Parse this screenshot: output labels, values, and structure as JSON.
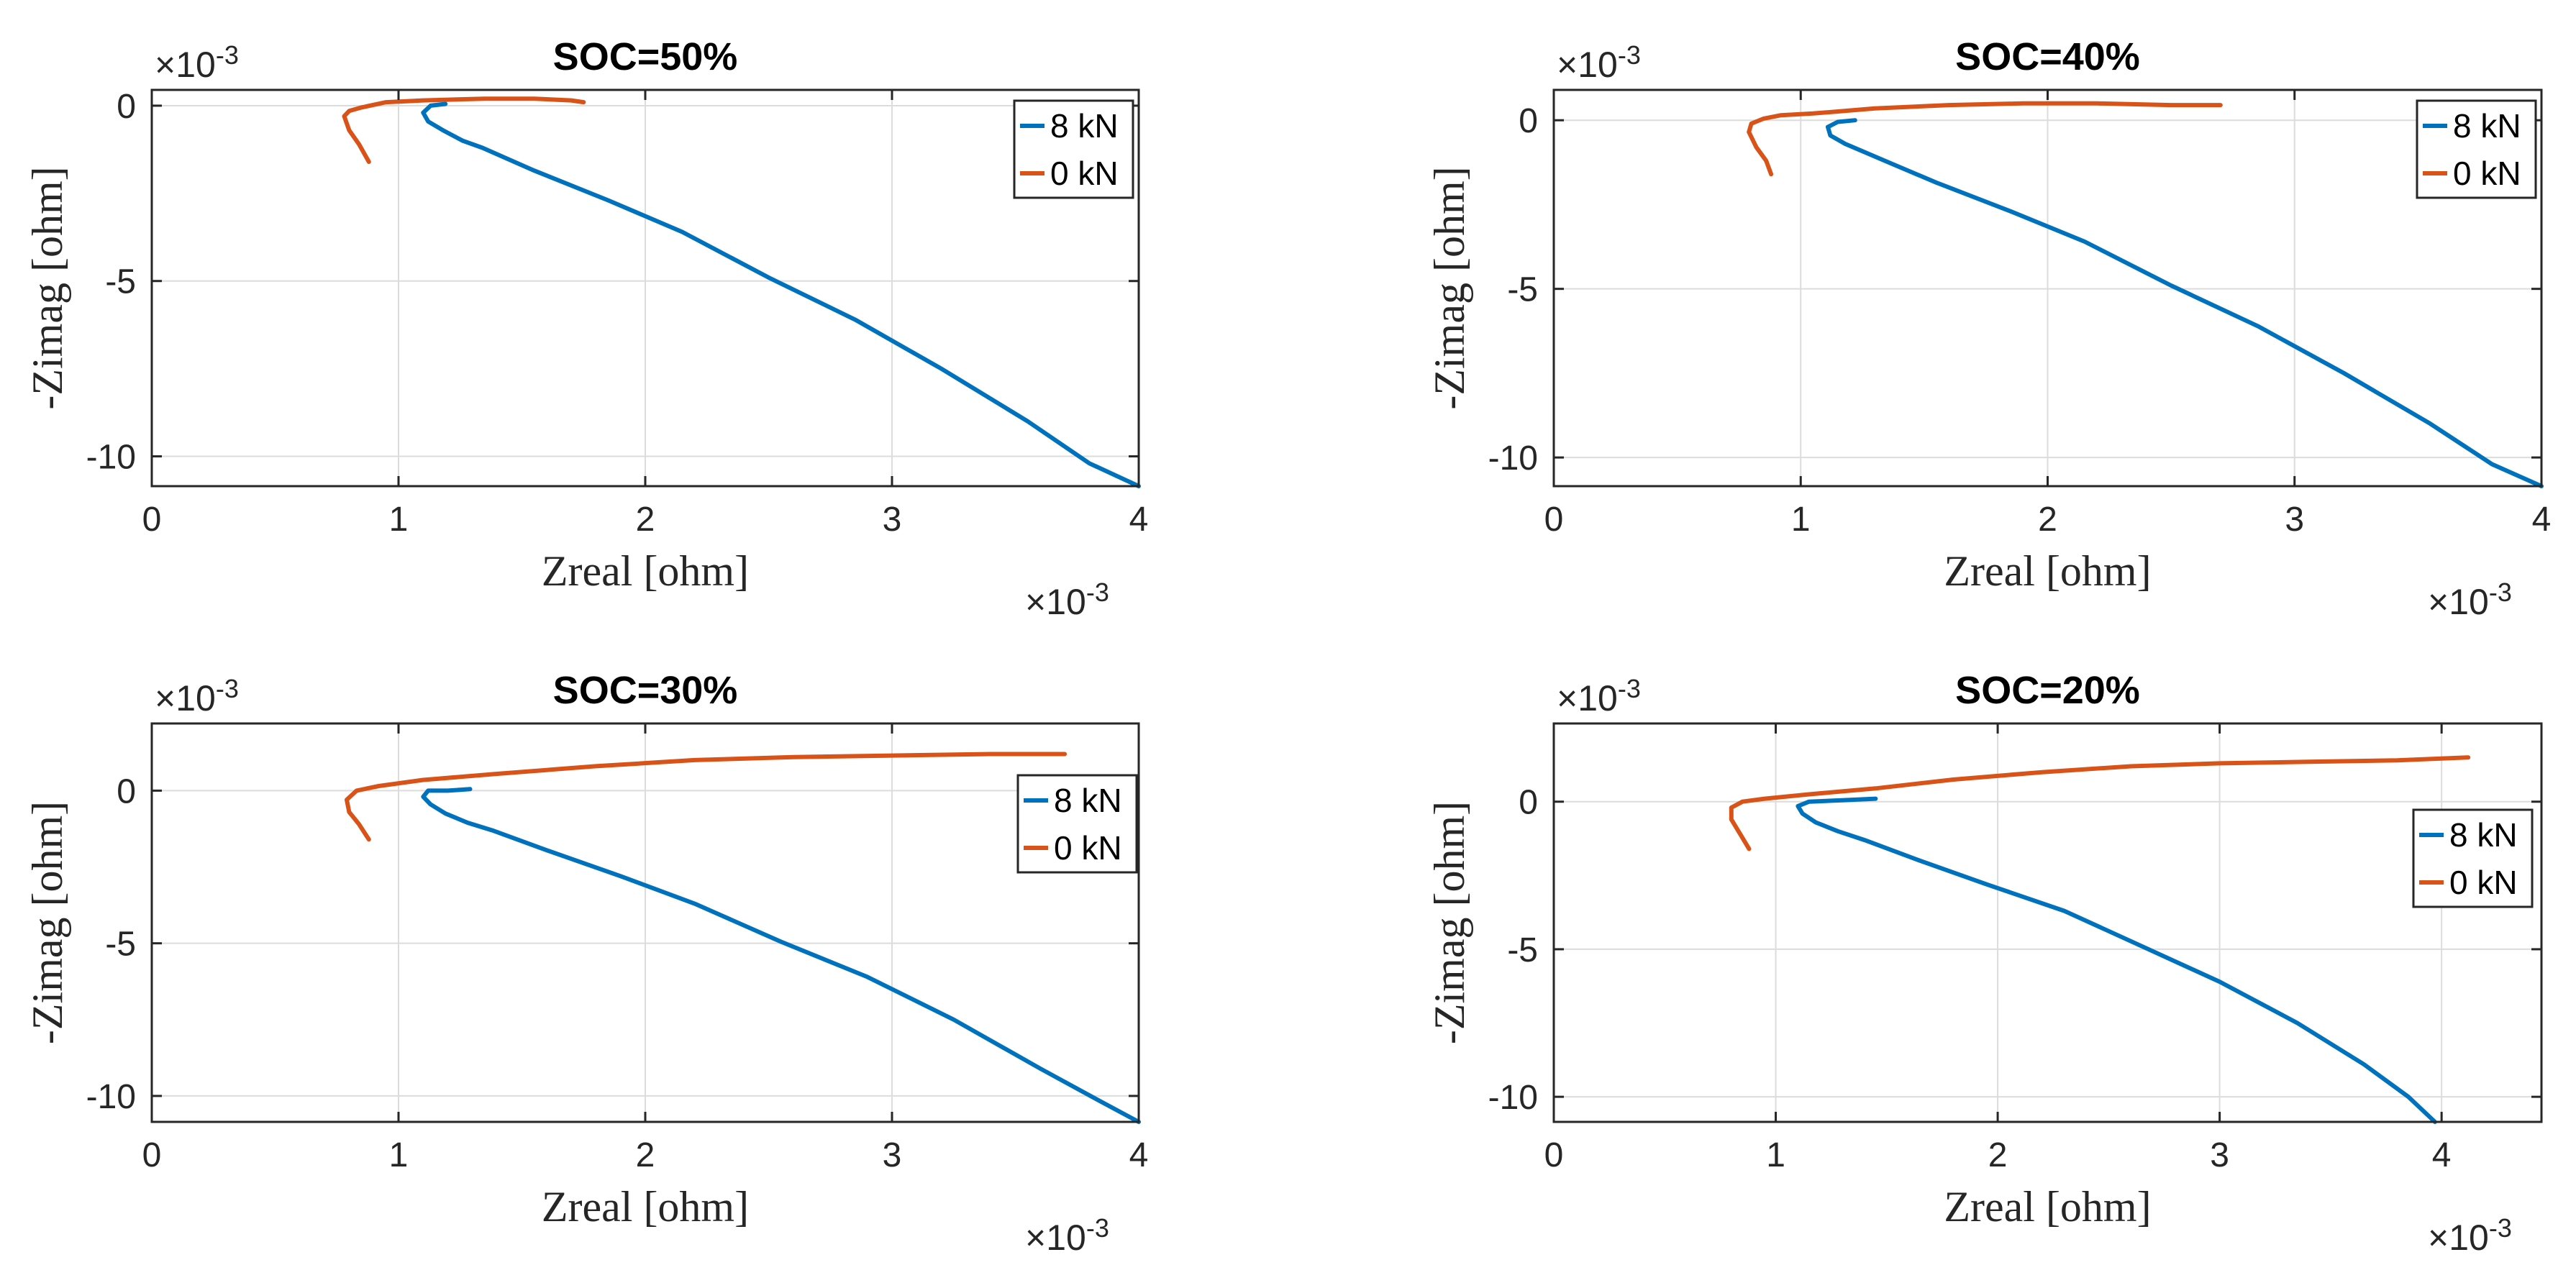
{
  "figure": {
    "exponent_base": "×10",
    "exponent_power": "-3"
  },
  "chart_data": [
    {
      "type": "line",
      "title": "SOC=50%",
      "xlabel": "Zreal [ohm]",
      "ylabel": "-Zimag [ohm]",
      "xlim": [
        0,
        4
      ],
      "ylim": [
        -10.85,
        0.45
      ],
      "xticks": [
        0,
        1,
        2,
        3,
        4
      ],
      "yticks": [
        0,
        -5,
        -10
      ],
      "legend_position": "top-right",
      "series": [
        {
          "name": "8 kN",
          "color": "#0072bd",
          "x": [
            1.19,
            1.13,
            1.1,
            1.12,
            1.18,
            1.26,
            1.34,
            1.55,
            1.85,
            2.15,
            2.5,
            2.85,
            3.2,
            3.55,
            3.8,
            4.0
          ],
          "y": [
            0.05,
            0.0,
            -0.2,
            -0.45,
            -0.7,
            -1.0,
            -1.2,
            -1.85,
            -2.7,
            -3.6,
            -4.9,
            -6.1,
            -7.5,
            -9.0,
            -10.2,
            -10.85
          ]
        },
        {
          "name": "0 kN",
          "color": "#d95319",
          "x": [
            1.75,
            1.7,
            1.55,
            1.35,
            1.1,
            0.95,
            0.85,
            0.8,
            0.78,
            0.8,
            0.84,
            0.88
          ],
          "y": [
            0.1,
            0.15,
            0.2,
            0.2,
            0.15,
            0.1,
            -0.05,
            -0.15,
            -0.3,
            -0.7,
            -1.1,
            -1.6
          ]
        }
      ]
    },
    {
      "type": "line",
      "title": "SOC=40%",
      "xlabel": "Zreal [ohm]",
      "ylabel": "-Zimag [ohm]",
      "xlim": [
        0,
        4
      ],
      "ylim": [
        -10.85,
        0.9
      ],
      "xticks": [
        0,
        1,
        2,
        3,
        4
      ],
      "yticks": [
        0,
        -5,
        -10
      ],
      "legend_position": "top-right",
      "series": [
        {
          "name": "8 kN",
          "color": "#0072bd",
          "x": [
            1.22,
            1.15,
            1.11,
            1.12,
            1.18,
            1.26,
            1.34,
            1.55,
            1.85,
            2.15,
            2.5,
            2.85,
            3.2,
            3.55,
            3.8,
            4.0
          ],
          "y": [
            0.0,
            -0.05,
            -0.2,
            -0.45,
            -0.7,
            -0.95,
            -1.2,
            -1.85,
            -2.7,
            -3.6,
            -4.9,
            -6.1,
            -7.5,
            -9.0,
            -10.2,
            -10.85
          ]
        },
        {
          "name": "0 kN",
          "color": "#d95319",
          "x": [
            2.7,
            2.5,
            2.2,
            1.9,
            1.6,
            1.3,
            1.05,
            0.92,
            0.85,
            0.8,
            0.79,
            0.82,
            0.86,
            0.88
          ],
          "y": [
            0.45,
            0.45,
            0.5,
            0.5,
            0.45,
            0.35,
            0.2,
            0.15,
            0.05,
            -0.1,
            -0.35,
            -0.8,
            -1.2,
            -1.6
          ]
        }
      ]
    },
    {
      "type": "line",
      "title": "SOC=30%",
      "xlabel": "Zreal [ohm]",
      "ylabel": "-Zimag [ohm]",
      "xlim": [
        0,
        4
      ],
      "ylim": [
        -10.85,
        2.2
      ],
      "xticks": [
        0,
        1,
        2,
        3,
        4
      ],
      "yticks": [
        0,
        -5,
        -10
      ],
      "legend_position": "right",
      "series": [
        {
          "name": "8 kN",
          "color": "#0072bd",
          "x": [
            1.29,
            1.2,
            1.12,
            1.1,
            1.13,
            1.19,
            1.28,
            1.38,
            1.6,
            1.9,
            2.2,
            2.55,
            2.9,
            3.25,
            3.6,
            3.85,
            4.0
          ],
          "y": [
            0.05,
            0.0,
            0.0,
            -0.2,
            -0.45,
            -0.75,
            -1.05,
            -1.3,
            -1.95,
            -2.8,
            -3.7,
            -4.95,
            -6.1,
            -7.5,
            -9.1,
            -10.2,
            -10.85
          ]
        },
        {
          "name": "0 kN",
          "color": "#d95319",
          "x": [
            3.7,
            3.4,
            3.0,
            2.6,
            2.2,
            1.8,
            1.4,
            1.1,
            0.92,
            0.83,
            0.79,
            0.8,
            0.84,
            0.88
          ],
          "y": [
            1.2,
            1.2,
            1.15,
            1.1,
            1.0,
            0.8,
            0.55,
            0.35,
            0.15,
            0.0,
            -0.3,
            -0.7,
            -1.1,
            -1.6
          ]
        }
      ]
    },
    {
      "type": "line",
      "title": "SOC=20%",
      "xlabel": "Zreal [ohm]",
      "ylabel": "-Zimag [ohm]",
      "xlim": [
        0,
        4.45
      ],
      "ylim": [
        -10.85,
        2.65
      ],
      "xticks": [
        0,
        1,
        2,
        3,
        4
      ],
      "yticks": [
        0,
        -5,
        -10
      ],
      "legend_position": "right",
      "series": [
        {
          "name": "8 kN",
          "color": "#0072bd",
          "x": [
            1.45,
            1.3,
            1.15,
            1.1,
            1.12,
            1.18,
            1.28,
            1.4,
            1.65,
            1.95,
            2.3,
            2.65,
            3.0,
            3.35,
            3.65,
            3.85,
            3.97
          ],
          "y": [
            0.1,
            0.05,
            0.0,
            -0.15,
            -0.4,
            -0.7,
            -1.0,
            -1.3,
            -2.0,
            -2.8,
            -3.7,
            -4.9,
            -6.1,
            -7.5,
            -8.9,
            -10.0,
            -10.85
          ]
        },
        {
          "name": "0 kN",
          "color": "#d95319",
          "x": [
            4.12,
            3.8,
            3.4,
            3.0,
            2.6,
            2.2,
            1.8,
            1.45,
            1.15,
            0.95,
            0.85,
            0.8,
            0.8,
            0.84,
            0.88
          ],
          "y": [
            1.5,
            1.4,
            1.35,
            1.3,
            1.2,
            1.0,
            0.75,
            0.45,
            0.25,
            0.1,
            0.0,
            -0.2,
            -0.6,
            -1.1,
            -1.6
          ]
        }
      ]
    }
  ]
}
